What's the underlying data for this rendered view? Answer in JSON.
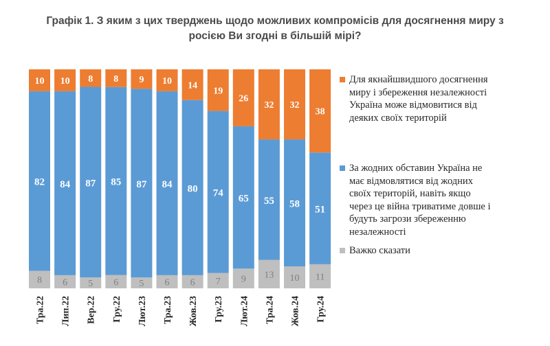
{
  "title_line1": "Графік 1. З яким з цих тверджень щодо можливих компромісів для досягнення миру з",
  "title_line2": "росією Ви згодні в більшій мірі?",
  "colors": {
    "orange": "#ed7d31",
    "blue": "#5b9bd5",
    "gray": "#bfbfbf"
  },
  "chart_data": {
    "type": "bar",
    "stacked": true,
    "orientation": "vertical",
    "categories": [
      "Тра.22",
      "Лип.22",
      "Вер.22",
      "Гру.22",
      "Лют.23",
      "Тра.23",
      "Жов.23",
      "Гру.23",
      "Лют.24",
      "Тра.24",
      "Жов.24",
      "Гру.24"
    ],
    "series": [
      {
        "name": "Важко сказати",
        "color": "#bfbfbf",
        "values": [
          8,
          6,
          5,
          6,
          5,
          6,
          6,
          7,
          9,
          13,
          10,
          11
        ]
      },
      {
        "name": "За жодних обставин Україна не має відмовлятися від жодних своїх територій, навіть якщо через це війна триватиме довше і будуть загрози збереженню незалежності",
        "color": "#5b9bd5",
        "values": [
          82,
          84,
          87,
          85,
          87,
          84,
          80,
          74,
          65,
          55,
          58,
          51
        ]
      },
      {
        "name": "Для якнайшвидшого досягнення миру і збереження незалежності Україна може відмовитися від деяких своїх територій",
        "color": "#ed7d31",
        "values": [
          10,
          10,
          8,
          8,
          9,
          10,
          14,
          19,
          26,
          32,
          32,
          38
        ]
      }
    ],
    "legend_position": "right",
    "data_labels": true,
    "grid": false
  },
  "legend": [
    {
      "color": "#ed7d31",
      "lines": [
        "Для якнайшвидшого досягнення",
        "миру і збереження незалежності",
        "Україна може відмовитися від",
        "деяких своїх територій"
      ]
    },
    {
      "color": "#5b9bd5",
      "lines": [
        "За жодних обставин Україна не",
        "має відмовлятися від жодних",
        "своїх територій, навіть якщо",
        "через це війна триватиме довше і",
        "будуть загрози збереженню",
        "незалежності"
      ]
    },
    {
      "color": "#bfbfbf",
      "lines": [
        "Важко сказати"
      ]
    }
  ]
}
